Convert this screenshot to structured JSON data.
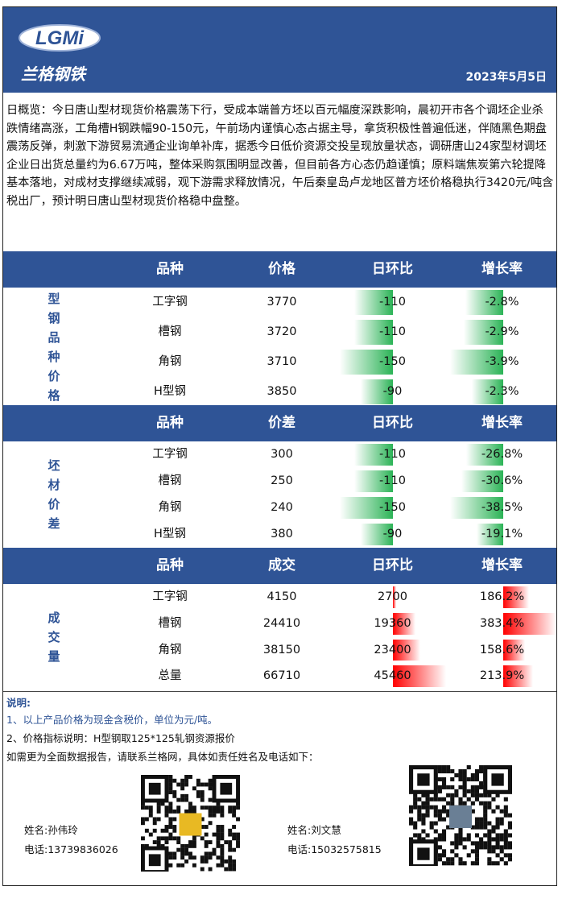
{
  "header": {
    "logo": "LGMi",
    "brand": "兰格钢铁",
    "date": "2023年5月5日"
  },
  "summary": "日概览：今日唐山型材现货价格震荡下行，受成本端普方坯以百元幅度深跌影响，晨初开市各个调坯企业杀跌情绪高涨，工角槽H钢跌幅90-150元，午前场内谨慎心态占据主导，拿货积极性普遍低迷，伴随黑色期盘震荡反弹，刺激下游贸易流通企业询单补库，据悉今日低价资源交投呈现放量状态，调研唐山24家型材调坯企业日出货总量约为6.67万吨，整体采购氛围明显改善，但目前各方心态仍趋谨慎；原料端焦炭第六轮提降基本落地，对成材支撑继续减弱，观下游需求释放情况，午后秦皇岛卢龙地区普方坯价格稳执行3420元/吨含税出厂，预计明日唐山型材现货价格稳中盘整。",
  "sections": [
    {
      "label": "型钢品种价格",
      "columns": [
        "品种",
        "价格",
        "日环比",
        "增长率"
      ],
      "rows": [
        [
          "工字钢",
          3770,
          -110,
          {
            "value": -2.8,
            "label": "-2.8%"
          }
        ],
        [
          "槽钢",
          3720,
          -110,
          {
            "value": -2.9,
            "label": "-2.9%"
          }
        ],
        [
          "角钢",
          3710,
          -150,
          {
            "value": -3.9,
            "label": "-3.9%"
          }
        ],
        [
          "H型钢",
          3850,
          -90,
          {
            "value": -2.3,
            "label": "-2.3%"
          }
        ]
      ]
    },
    {
      "label": "坯材价差",
      "columns": [
        "品种",
        "价差",
        "日环比",
        "增长率"
      ],
      "rows": [
        [
          "工字钢",
          300,
          -110,
          {
            "value": -26.8,
            "label": "-26.8%"
          }
        ],
        [
          "槽钢",
          250,
          -110,
          {
            "value": -30.6,
            "label": "-30.6%"
          }
        ],
        [
          "角钢",
          240,
          -150,
          {
            "value": -38.5,
            "label": "-38.5%"
          }
        ],
        [
          "H型钢",
          380,
          -90,
          {
            "value": -19.1,
            "label": "-19.1%"
          }
        ]
      ]
    },
    {
      "label": "成交量",
      "columns": [
        "品种",
        "成交",
        "日环比",
        "增长率"
      ],
      "rows": [
        [
          "工字钢",
          4150,
          2700,
          {
            "value": 186.2,
            "label": "186.2%"
          }
        ],
        [
          "槽钢",
          24410,
          19360,
          {
            "value": 383.4,
            "label": "383.4%"
          }
        ],
        [
          "角钢",
          38150,
          23400,
          {
            "value": 158.6,
            "label": "158.6%"
          }
        ],
        [
          "总量",
          66710,
          45460,
          {
            "value": 213.9,
            "label": "213.9%"
          }
        ]
      ]
    }
  ],
  "notes": {
    "title": "说明:",
    "items": [
      "1、以上产品价格为现金含税价，单位为元/吨。",
      "2、价格指标说明：H型钢取125*125轧钢资源报价"
    ],
    "contact_intro": "如需更为全面数据报告，请联系兰格网，具体如责任姓名及电话如下：",
    "contacts": [
      {
        "name": "姓名:孙伟玲",
        "phone": "电话:13739836026"
      },
      {
        "name": "姓名:刘文慧",
        "phone": "电话:15032575815"
      }
    ]
  }
}
